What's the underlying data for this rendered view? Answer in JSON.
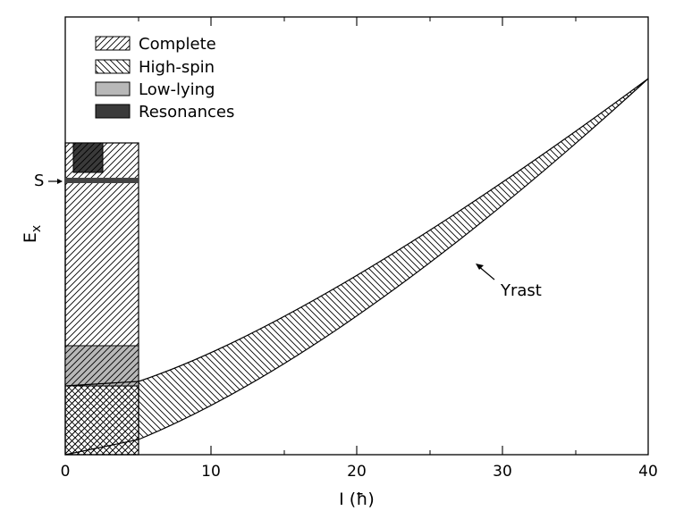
{
  "figure": {
    "x_axis": {
      "label": "I (ħ)",
      "min": 0,
      "max": 40,
      "ticks": [
        "0",
        "10",
        "20",
        "30",
        "40"
      ]
    },
    "y_axis": {
      "label_main": "E",
      "label_sub": "x"
    },
    "legend": {
      "placement": "top-left",
      "items": [
        {
          "label": "Complete",
          "pattern": "diagonal-up"
        },
        {
          "label": "High-spin",
          "pattern": "diagonal-down"
        },
        {
          "label": "Low-lying",
          "pattern": "solid-light-gray"
        },
        {
          "label": "Resonances",
          "pattern": "solid-dark-gray"
        }
      ]
    },
    "annotations": {
      "separation_marker": "S",
      "yrast_label": "Yrast"
    },
    "colors": {
      "line": "#000000",
      "low_lying_fill": "#b8b8b8",
      "resonance_fill": "#3a3a3a",
      "separation_line": "#444444"
    }
  }
}
